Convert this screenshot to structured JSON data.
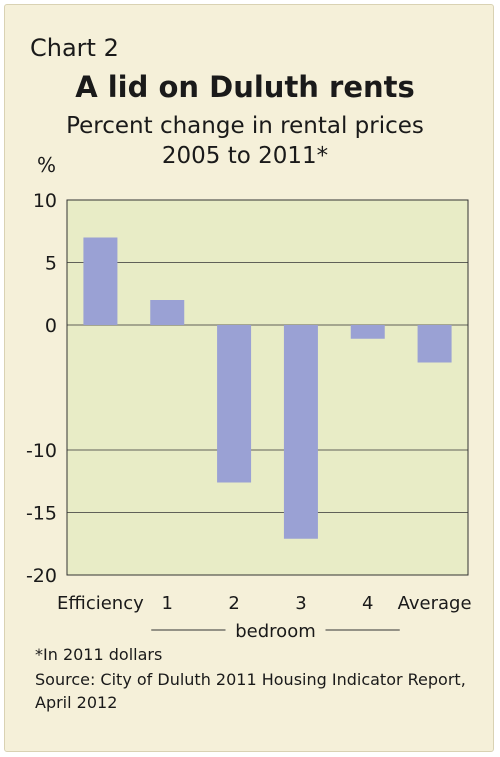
{
  "header": {
    "chart_number": "Chart 2",
    "title": "A lid on Duluth rents",
    "subtitle_line1": "Percent change in rental prices",
    "subtitle_line2": "2005 to 2011*",
    "unit": "%"
  },
  "footer": {
    "note": "*In 2011 dollars",
    "source_line1": "Source: City of Duluth 2011 Housing Indicator Report,",
    "source_line2": "April 2012"
  },
  "colors": {
    "background": "#f5f0d9",
    "plot_area": "#e8ecc6",
    "bar": "#9aa1d4",
    "grid": "#333333"
  },
  "chart_data": {
    "type": "bar",
    "title": "A lid on Duluth rents",
    "subtitle": "Percent change in rental prices 2005 to 2011*",
    "ylabel": "%",
    "xlabel": "",
    "categories": [
      "Efficiency",
      "1",
      "2",
      "3",
      "4",
      "Average"
    ],
    "category_group": {
      "label": "bedroom",
      "members": [
        "1",
        "2",
        "3",
        "4"
      ]
    },
    "values": [
      7,
      2,
      -12.6,
      -17.1,
      -1.1,
      -3
    ],
    "ylim": [
      -20,
      10
    ],
    "yticks": [
      10,
      5,
      0,
      -10,
      -15,
      -20
    ],
    "grid": true,
    "legend": "none"
  }
}
